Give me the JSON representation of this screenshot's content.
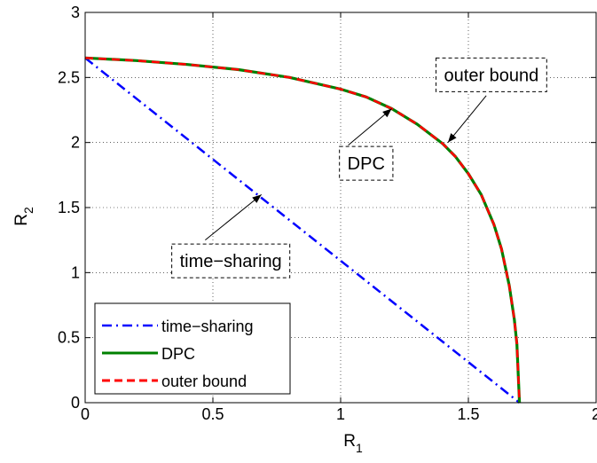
{
  "chart_data": {
    "type": "line",
    "xlabel": "R",
    "xlabel_sub": "1",
    "ylabel": "R",
    "ylabel_sub": "2",
    "xlim": [
      0,
      2
    ],
    "ylim": [
      0,
      3
    ],
    "x_ticks": [
      "0",
      "0.5",
      "1",
      "1.5",
      "2"
    ],
    "y_ticks": [
      "0",
      "0.5",
      "1",
      "1.5",
      "2",
      "2.5",
      "3"
    ],
    "grid": true,
    "legend_position": "bottom-left",
    "series": [
      {
        "name": "time−sharing",
        "color": "#0000ff",
        "style": "dash-dot",
        "x": [
          0,
          1.7
        ],
        "y": [
          2.65,
          0
        ]
      },
      {
        "name": "DPC",
        "color": "#008000",
        "style": "solid",
        "x": [
          0,
          0.2,
          0.4,
          0.6,
          0.8,
          1.0,
          1.1,
          1.2,
          1.3,
          1.4,
          1.45,
          1.5,
          1.55,
          1.6,
          1.63,
          1.66,
          1.68,
          1.69,
          1.7
        ],
        "y": [
          2.65,
          2.63,
          2.6,
          2.56,
          2.5,
          2.41,
          2.35,
          2.26,
          2.14,
          1.99,
          1.89,
          1.76,
          1.6,
          1.37,
          1.18,
          0.9,
          0.64,
          0.45,
          0
        ]
      },
      {
        "name": "outer bound",
        "color": "#ff0000",
        "style": "dashed",
        "x": [
          0,
          0.2,
          0.4,
          0.6,
          0.8,
          1.0,
          1.1,
          1.2,
          1.3,
          1.4,
          1.45,
          1.5,
          1.55,
          1.6,
          1.63,
          1.66,
          1.68,
          1.69,
          1.7
        ],
        "y": [
          2.65,
          2.63,
          2.6,
          2.56,
          2.5,
          2.41,
          2.35,
          2.26,
          2.14,
          1.99,
          1.89,
          1.76,
          1.6,
          1.37,
          1.18,
          0.9,
          0.64,
          0.45,
          0
        ]
      }
    ],
    "annotations": [
      {
        "text": "outer bound",
        "box_center": [
          1.59,
          2.52
        ],
        "arrow_from": [
          1.57,
          2.36
        ],
        "arrow_to": [
          1.42,
          2.0
        ]
      },
      {
        "text": "DPC",
        "box_center": [
          1.1,
          1.84
        ],
        "arrow_from": [
          1.03,
          1.98
        ],
        "arrow_to": [
          1.2,
          2.26
        ]
      },
      {
        "text": "time−sharing",
        "box_center": [
          0.57,
          1.09
        ],
        "arrow_from": [
          0.47,
          1.25
        ],
        "arrow_to": [
          0.69,
          1.6
        ]
      }
    ]
  }
}
